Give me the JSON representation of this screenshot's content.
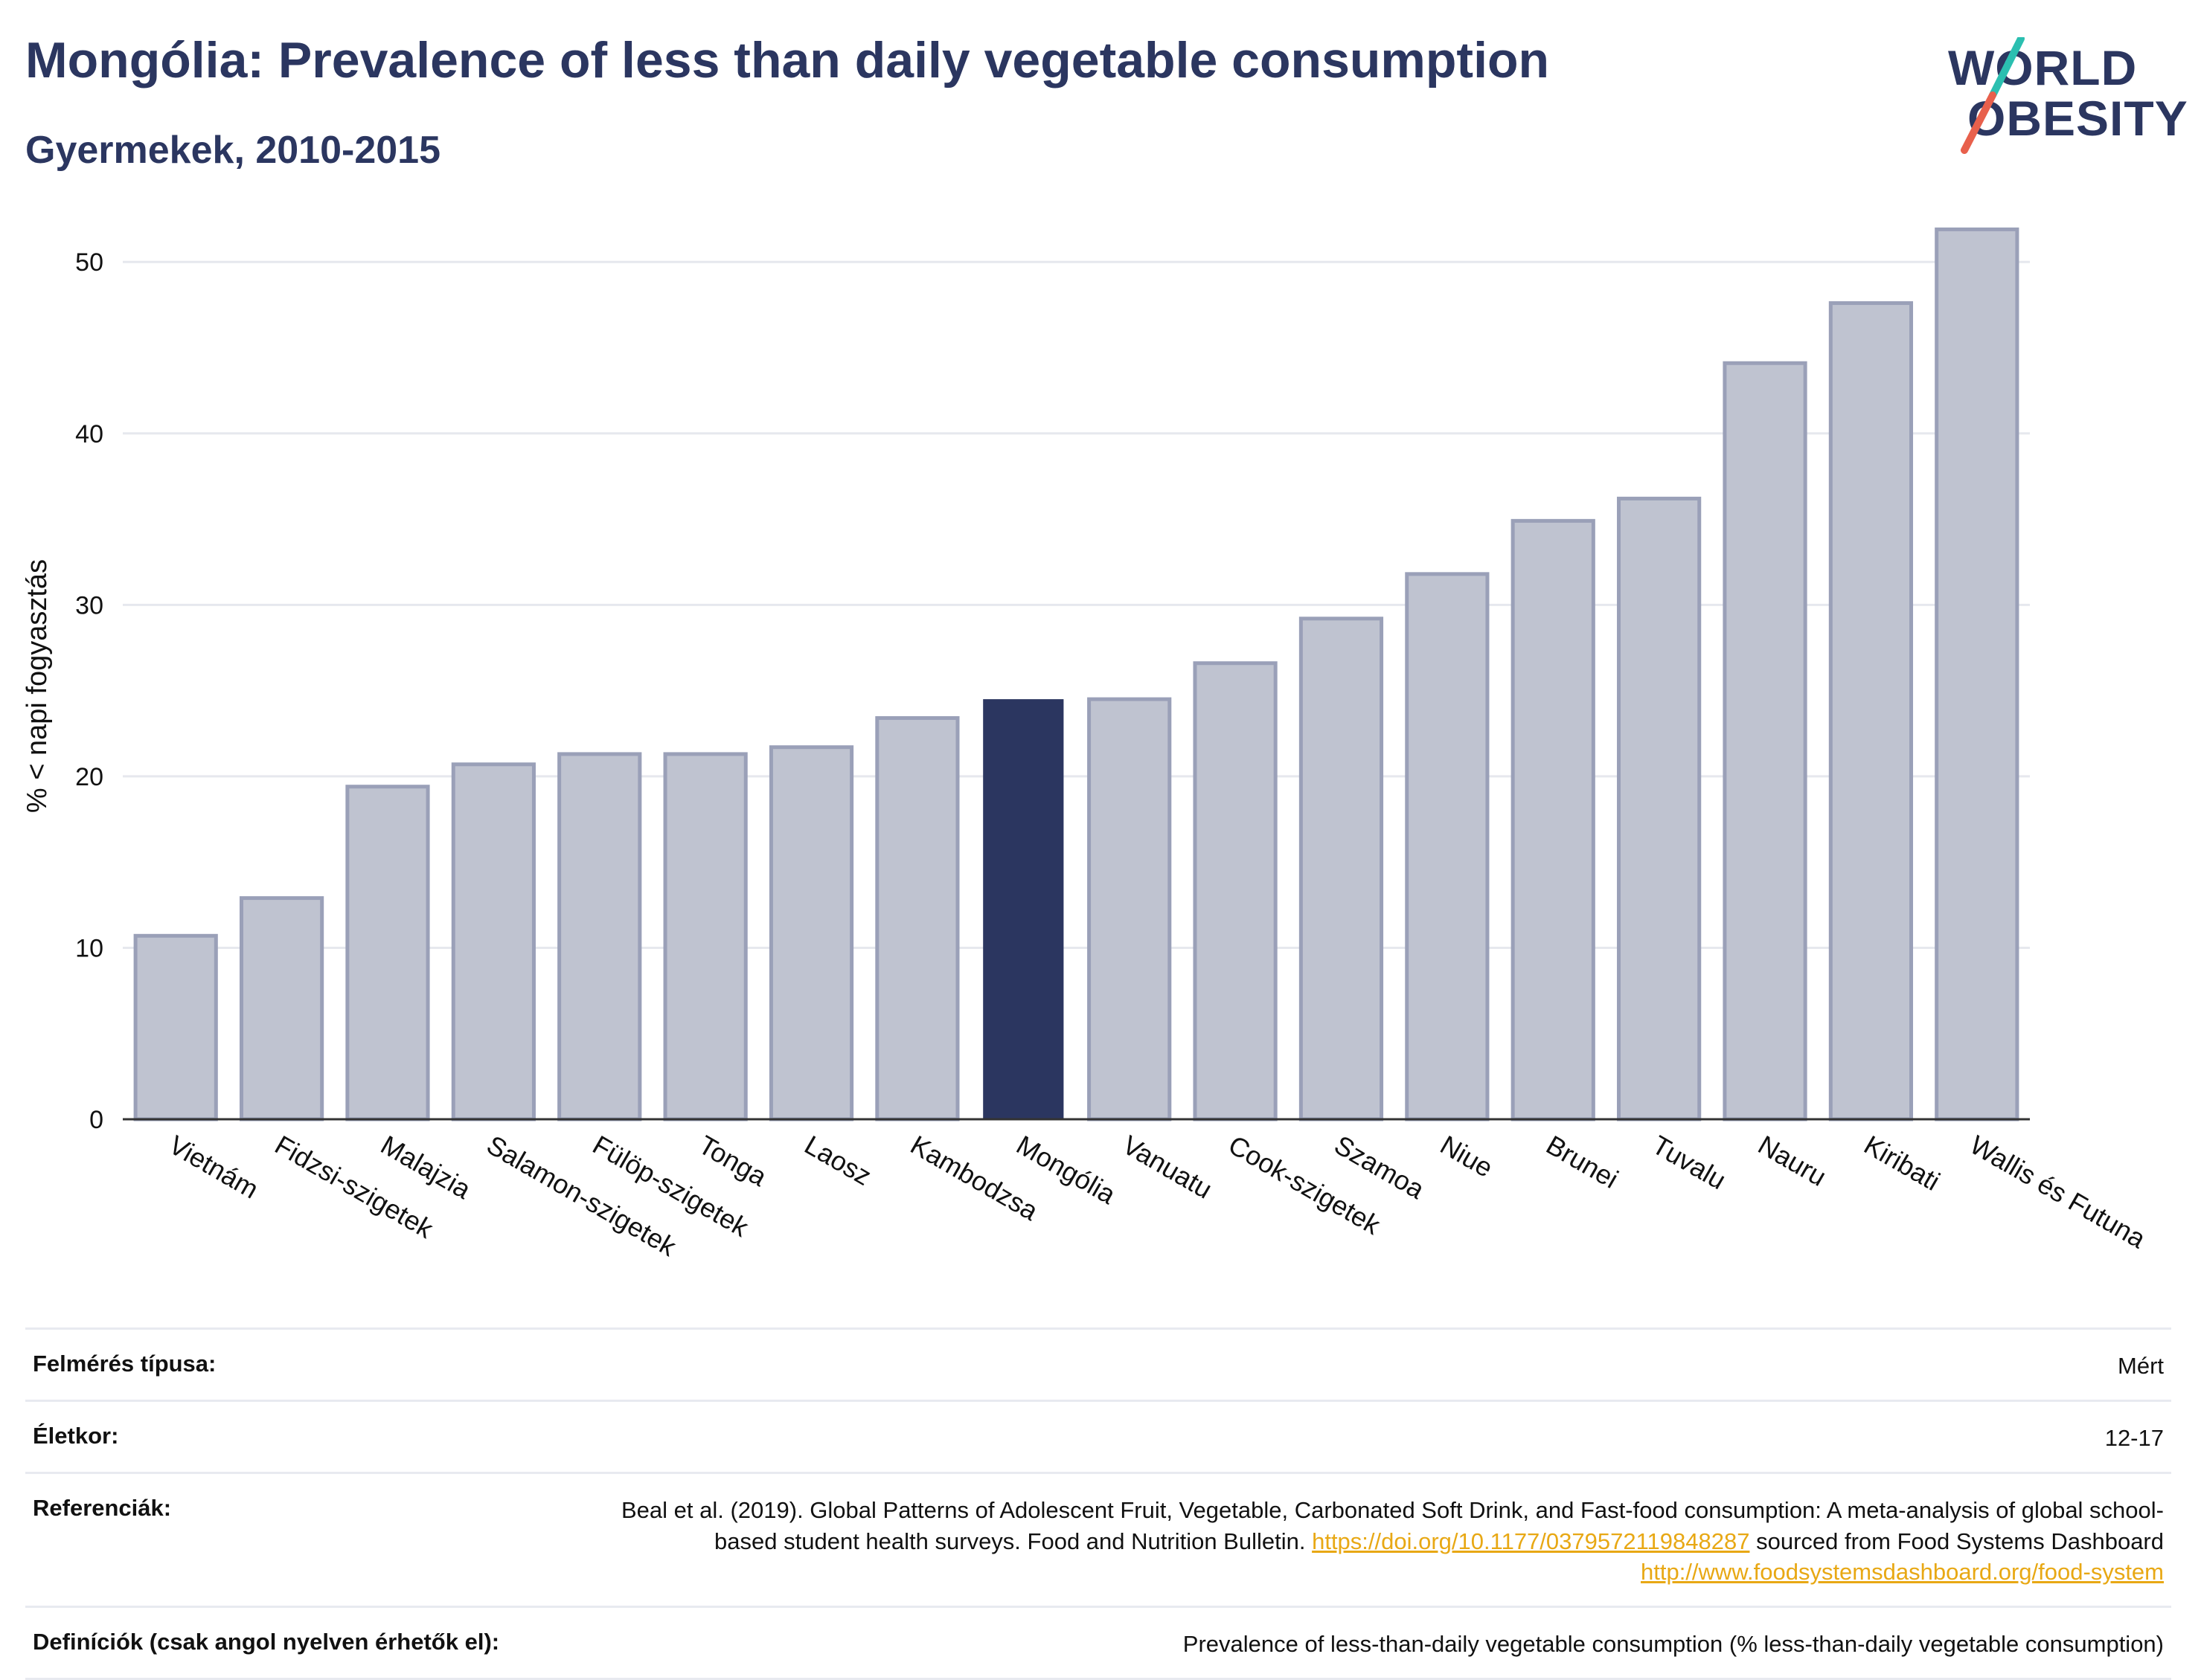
{
  "header": {
    "title": "Mongólia: Prevalence of less than daily vegetable consumption",
    "subtitle": "Gyermekek, 2010-2015"
  },
  "logo": {
    "line1": "WORLD",
    "line2": "OBESITY",
    "accent_colors": [
      "#2bbfb0",
      "#e8604c"
    ]
  },
  "colors": {
    "bar_default": "#bfc3d0",
    "bar_border": "#9aa0b8",
    "bar_highlight": "#2b3660",
    "title": "#2b3660",
    "link": "#e8a814"
  },
  "chart_data": {
    "type": "bar",
    "ylabel": "% < napi fogyasztás",
    "xlabel": "",
    "ylim": [
      0,
      54
    ],
    "yticks": [
      0,
      10,
      20,
      30,
      40,
      50
    ],
    "grid": true,
    "highlight": "Mongólia",
    "categories": [
      "Vietnám",
      "Fidzsi-szigetek",
      "Malajzia",
      "Salamon-szigetek",
      "Fülöp-szigetek",
      "Tonga",
      "Laosz",
      "Kambodzsa",
      "Mongólia",
      "Vanuatu",
      "Cook-szigetek",
      "Szamoa",
      "Niue",
      "Brunei",
      "Tuvalu",
      "Nauru",
      "Kiribati",
      "Wallis és Futuna"
    ],
    "values": [
      10.7,
      12.9,
      19.4,
      20.7,
      21.3,
      21.3,
      21.7,
      23.4,
      24.5,
      24.5,
      26.6,
      29.2,
      31.8,
      34.9,
      36.2,
      44.1,
      47.6,
      51.9
    ]
  },
  "meta": {
    "survey_label": "Felmérés típusa:",
    "survey_value": "Mért",
    "age_label": "Életkor:",
    "age_value": "12-17",
    "ref_label": "Referenciák:",
    "ref_text1": "Beal et al. (2019). Global Patterns of Adolescent Fruit, Vegetable, Carbonated Soft Drink, and Fast-food consumption: A meta-analysis of global school-based student health surveys. Food and Nutrition Bulletin.",
    "ref_link1": "https://doi.org/10.1177/0379572119848287",
    "ref_text2": "sourced from Food Systems Dashboard",
    "ref_link2": "http://www.foodsystemsdashboard.org/food-system",
    "def_label": "Definíciók (csak angol nyelven érhetők el):",
    "def_value": "Prevalence of less-than-daily vegetable consumption (% less-than-daily vegetable consumption)"
  }
}
